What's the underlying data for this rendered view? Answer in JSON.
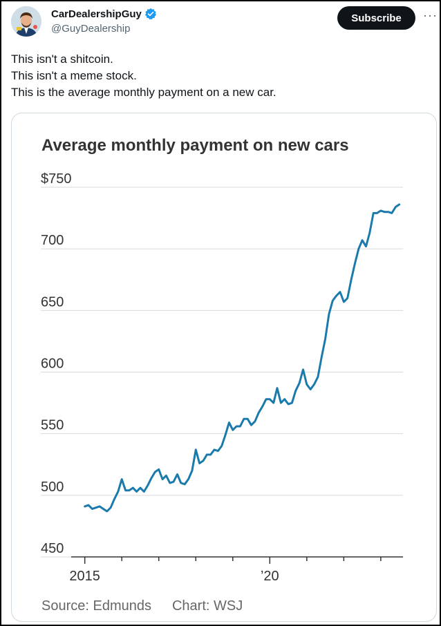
{
  "account": {
    "display_name": "CarDealershipGuy",
    "handle": "@GuyDealership"
  },
  "subscribe_label": "Subscribe",
  "more_label": "···",
  "tweet": {
    "lines": [
      "This isn't a shitcoin.",
      "This isn't a meme stock.",
      "This is the average monthly payment on a new car."
    ]
  },
  "chart_data": {
    "type": "line",
    "title": "Average monthly payment on new cars",
    "y_ticks": [
      "$750",
      "700",
      "650",
      "600",
      "550",
      "500",
      "450"
    ],
    "y_tick_values": [
      750,
      700,
      650,
      600,
      550,
      500,
      450
    ],
    "x_tick_labels": [
      "2015",
      "’20"
    ],
    "x_tick_label_values": [
      2015,
      2020
    ],
    "ylim": [
      450,
      750
    ],
    "xlim": [
      2014.95,
      2023.6
    ],
    "grid": true,
    "source": "Source: Edmunds",
    "credit": "Chart: WSJ",
    "color": "#1a7aab",
    "series": [
      {
        "x": [
          2015.0,
          2015.1,
          2015.2,
          2015.3,
          2015.4,
          2015.5,
          2015.6,
          2015.7,
          2015.8,
          2015.9,
          2016.0,
          2016.1,
          2016.2,
          2016.3,
          2016.4,
          2016.5,
          2016.6,
          2016.7,
          2016.8,
          2016.9,
          2017.0,
          2017.1,
          2017.2,
          2017.3,
          2017.4,
          2017.5,
          2017.6,
          2017.7,
          2017.8,
          2017.9,
          2018.0,
          2018.1,
          2018.2,
          2018.3,
          2018.4,
          2018.5,
          2018.6,
          2018.7,
          2018.8,
          2018.9,
          2019.0,
          2019.1,
          2019.2,
          2019.3,
          2019.4,
          2019.5,
          2019.6,
          2019.7,
          2019.8,
          2019.9,
          2020.0,
          2020.1,
          2020.2,
          2020.3,
          2020.4,
          2020.5,
          2020.6,
          2020.7,
          2020.8,
          2020.9,
          2021.0,
          2021.1,
          2021.2,
          2021.3,
          2021.4,
          2021.5,
          2021.6,
          2021.7,
          2021.8,
          2021.9,
          2022.0,
          2022.1,
          2022.2,
          2022.3,
          2022.4,
          2022.5,
          2022.6,
          2022.7,
          2022.8,
          2022.9,
          2023.0,
          2023.1,
          2023.2,
          2023.3,
          2023.4,
          2023.5
        ],
        "y": [
          491,
          492,
          489,
          490,
          491,
          489,
          487,
          490,
          497,
          503,
          513,
          504,
          504,
          506,
          503,
          506,
          503,
          508,
          514,
          519,
          521,
          513,
          516,
          510,
          511,
          517,
          510,
          509,
          513,
          520,
          537,
          526,
          528,
          533,
          533,
          537,
          536,
          540,
          549,
          559,
          553,
          556,
          556,
          562,
          562,
          557,
          560,
          567,
          572,
          578,
          578,
          575,
          587,
          575,
          578,
          574,
          575,
          585,
          591,
          602,
          590,
          586,
          590,
          596,
          612,
          627,
          647,
          658,
          662,
          665,
          657,
          660,
          675,
          688,
          700,
          707,
          702,
          713,
          729,
          729,
          731,
          730,
          730,
          729,
          734,
          736
        ]
      }
    ]
  }
}
